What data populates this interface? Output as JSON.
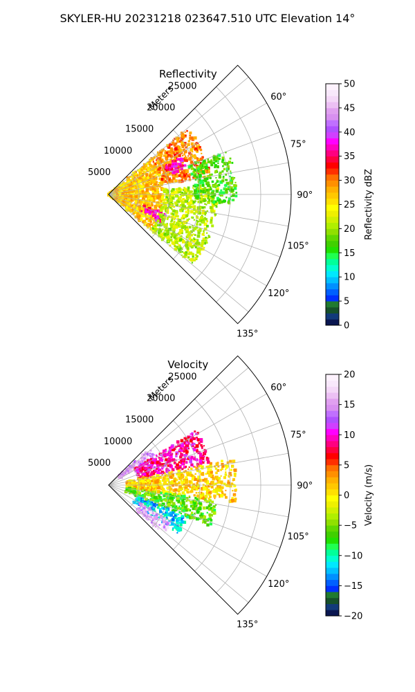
{
  "figure": {
    "title": "SKYLER-HU  20231218  023647.510 UTC Elevation 14°"
  },
  "chart_data": [
    {
      "type": "heatmap",
      "projection": "polar-sector",
      "title": "Reflectivity",
      "radial_label": "Meters",
      "r_ticks": [
        5000,
        10000,
        15000,
        20000,
        25000
      ],
      "r_tick_labels": [
        "5000",
        "10000",
        "15000",
        "20000",
        "25000"
      ],
      "r_max": 30000,
      "theta_range_deg": [
        45,
        135
      ],
      "theta_ticks": [
        60,
        75,
        90,
        105,
        120,
        135
      ],
      "theta_tick_labels": [
        "60°",
        "75°",
        "90°",
        "105°",
        "120°",
        "135°"
      ],
      "grid": true,
      "colorbar": {
        "label": "Reflectivity dBZ",
        "range": [
          0,
          50
        ],
        "ticks": [
          0,
          5,
          10,
          15,
          20,
          25,
          30,
          35,
          40,
          45,
          50
        ],
        "tick_labels": [
          "0",
          "5",
          "10",
          "15",
          "20",
          "25",
          "30",
          "35",
          "40",
          "45",
          "50"
        ],
        "colors": [
          "#0a1650",
          "#123a7a",
          "#16502a",
          "#207a30",
          "#0030ff",
          "#0060ff",
          "#0090ff",
          "#00c0ff",
          "#00e8ff",
          "#00ffd0",
          "#00ff9a",
          "#20ff50",
          "#20e000",
          "#40d000",
          "#60d800",
          "#90e000",
          "#b0ef00",
          "#d0f000",
          "#eef000",
          "#ffff00",
          "#ffe000",
          "#ffc800",
          "#ffb000",
          "#ff9000",
          "#ff7000",
          "#ff3000",
          "#ff0000",
          "#ff0040",
          "#ff0080",
          "#ff00c0",
          "#ff00ff",
          "#d040ff",
          "#b050ff",
          "#c070ff",
          "#d890f0",
          "#e0a0f0",
          "#ecc0f4",
          "#f4d8f8",
          "#f8e8fb",
          "#fdf2fd"
        ]
      },
      "field_summary": [
        {
          "theta": [
            50,
            130
          ],
          "r": [
            0,
            9000
          ],
          "value": 27
        },
        {
          "theta": [
            50,
            80
          ],
          "r": [
            9000,
            17000
          ],
          "value": 30
        },
        {
          "theta": [
            62,
            72
          ],
          "r": [
            10500,
            13500
          ],
          "value": 37
        },
        {
          "theta": [
            108,
            118
          ],
          "r": [
            6000,
            10000
          ],
          "value": 37
        },
        {
          "theta": [
            85,
            130
          ],
          "r": [
            9000,
            18000
          ],
          "value": 21
        },
        {
          "theta": [
            70,
            95
          ],
          "r": [
            14000,
            21000
          ],
          "value": 17
        }
      ]
    },
    {
      "type": "heatmap",
      "projection": "polar-sector",
      "title": "Velocity",
      "radial_label": "Meters",
      "r_ticks": [
        5000,
        10000,
        15000,
        20000,
        25000
      ],
      "r_tick_labels": [
        "5000",
        "10000",
        "15000",
        "20000",
        "25000"
      ],
      "r_max": 30000,
      "theta_range_deg": [
        45,
        135
      ],
      "theta_ticks": [
        60,
        75,
        90,
        105,
        120,
        135
      ],
      "theta_tick_labels": [
        "60°",
        "75°",
        "90°",
        "105°",
        "120°",
        "135°"
      ],
      "grid": true,
      "colorbar": {
        "label": "Velocity (m/s)",
        "range": [
          -20,
          20
        ],
        "ticks": [
          -20,
          -15,
          -10,
          -5,
          0,
          5,
          10,
          15,
          20
        ],
        "tick_labels": [
          "−20",
          "−15",
          "−10",
          "−5",
          "0",
          "5",
          "10",
          "15",
          "20"
        ],
        "colors": [
          "#0a1650",
          "#123a7a",
          "#16502a",
          "#207a30",
          "#0030ff",
          "#0060ff",
          "#0090ff",
          "#00c0ff",
          "#00e8ff",
          "#00ffd0",
          "#00ff9a",
          "#20ff50",
          "#20e000",
          "#40d000",
          "#60d800",
          "#90e000",
          "#b0ef00",
          "#d0f000",
          "#eef000",
          "#ffff00",
          "#ffe000",
          "#ffc800",
          "#ffb000",
          "#ff9000",
          "#ff7000",
          "#ff3000",
          "#ff0000",
          "#ff0040",
          "#ff0080",
          "#ff00c0",
          "#ff00ff",
          "#d040ff",
          "#b050ff",
          "#c070ff",
          "#d890f0",
          "#e0a0f0",
          "#ecc0f4",
          "#f4d8f8",
          "#f8e8fb",
          "#fdf2fd"
        ]
      },
      "field_summary": [
        {
          "theta": [
            48,
            58
          ],
          "r": [
            2000,
            9000
          ],
          "value": 15
        },
        {
          "theta": [
            58,
            78
          ],
          "r": [
            5000,
            17000
          ],
          "value": 9
        },
        {
          "theta": [
            78,
            98
          ],
          "r": [
            3000,
            21000
          ],
          "value": 1
        },
        {
          "theta": [
            98,
            112
          ],
          "r": [
            3000,
            18000
          ],
          "value": -6
        },
        {
          "theta": [
            112,
            125
          ],
          "r": [
            5000,
            14000
          ],
          "value": -12
        },
        {
          "theta": [
            120,
            132
          ],
          "r": [
            6000,
            12000
          ],
          "value": 16
        }
      ]
    }
  ]
}
